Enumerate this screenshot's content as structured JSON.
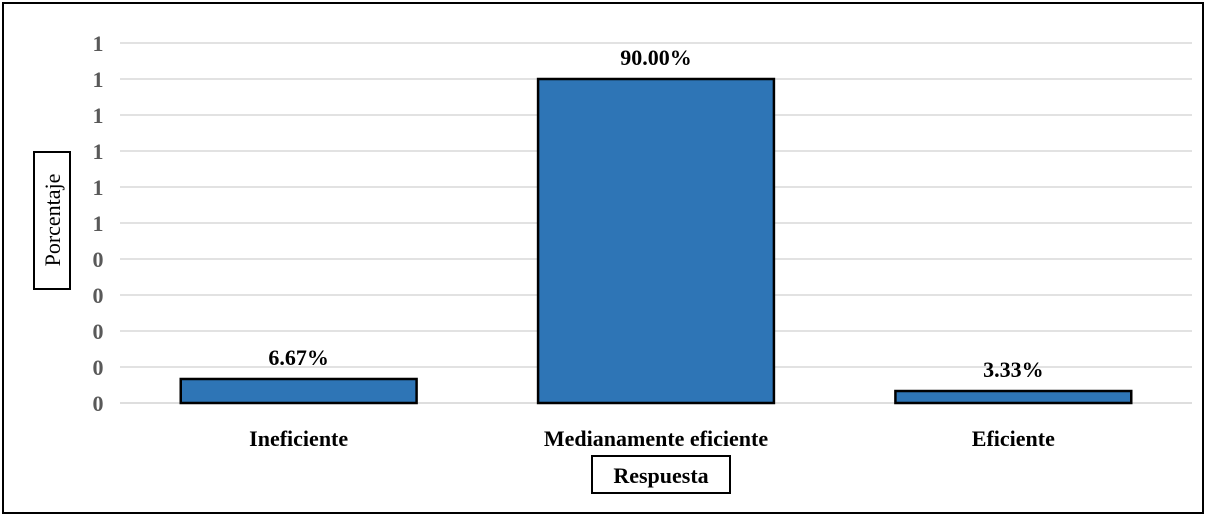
{
  "chart_data": {
    "type": "bar",
    "categories": [
      "Ineficiente",
      "Medianamente eficiente",
      "Eficiente"
    ],
    "values": [
      6.67,
      90.0,
      3.33
    ],
    "data_labels": [
      "6.67%",
      "90.00%",
      "3.33%"
    ],
    "y_tick_labels": [
      "0",
      "0",
      "0",
      "0",
      "0",
      "1",
      "1",
      "1",
      "1",
      "1",
      "1"
    ],
    "ylim": [
      0,
      100
    ],
    "xlabel": "Respuesta",
    "ylabel": "Porcentaje",
    "grid": true,
    "legend": "none",
    "bar_color": "#2E75B6",
    "grid_color": "#D9D9D9"
  }
}
